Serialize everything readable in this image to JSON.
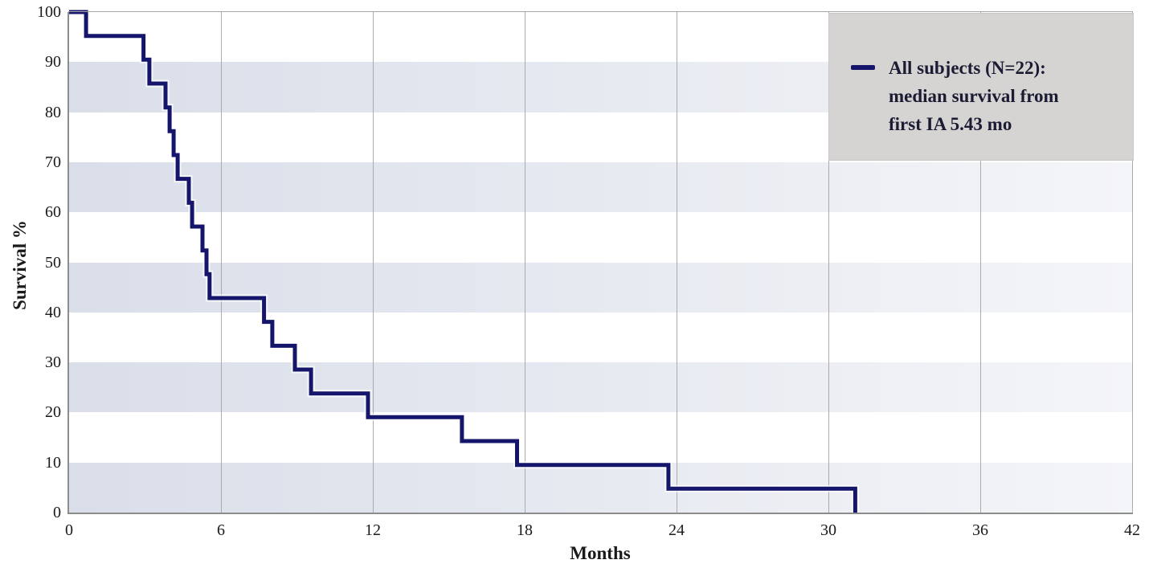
{
  "colors": {
    "background": "#ffffff",
    "curve": "#15156b",
    "curve_halo": "#ffffff",
    "band_left": "#d9dee9",
    "band_right": "#f4f5f8",
    "gridline": "#ababab",
    "axis": "#8c8c8c",
    "axis_top": "#a9a9a9",
    "tick_text": "#1a1a1a",
    "legend_bg": "#d6d4d2",
    "legend_border": "#c9c7c5",
    "legend_text": "#1b1b33"
  },
  "legend": {
    "lines": [
      "All subjects (N=22):",
      "median survival from",
      "first IA 5.43 mo"
    ],
    "position": "top-right"
  },
  "chart_data": {
    "type": "line",
    "subtype": "kaplan-meier-step",
    "title": "",
    "xlabel": "Months",
    "ylabel": "Survival %",
    "xlim": [
      0,
      42
    ],
    "ylim": [
      0,
      100
    ],
    "x_ticks": [
      0,
      6,
      12,
      18,
      24,
      30,
      36,
      42
    ],
    "y_ticks": [
      0,
      10,
      20,
      30,
      40,
      50,
      60,
      70,
      80,
      90,
      100
    ],
    "grid": {
      "vertical_gridlines": true,
      "horizontal_gridlines": false,
      "horizontal_shaded_bands_pct": [
        [
          0,
          10
        ],
        [
          20,
          30
        ],
        [
          40,
          50
        ],
        [
          60,
          70
        ],
        [
          80,
          90
        ]
      ]
    },
    "legend_position": "top-right",
    "series": [
      {
        "name": "All subjects (N=22): median survival from first IA 5.43 mo",
        "color": "#15156b",
        "n_subjects": 22,
        "median_survival_months": 5.43,
        "start": {
          "t": 0,
          "s": 100
        },
        "steps": [
          {
            "t": 0.67,
            "s": 95.24
          },
          {
            "t": 2.94,
            "s": 90.48
          },
          {
            "t": 3.17,
            "s": 85.71
          },
          {
            "t": 3.81,
            "s": 80.95
          },
          {
            "t": 3.97,
            "s": 76.19
          },
          {
            "t": 4.13,
            "s": 71.43
          },
          {
            "t": 4.29,
            "s": 66.67
          },
          {
            "t": 4.73,
            "s": 61.9
          },
          {
            "t": 4.86,
            "s": 57.14
          },
          {
            "t": 5.27,
            "s": 52.38
          },
          {
            "t": 5.43,
            "s": 47.62
          },
          {
            "t": 5.55,
            "s": 42.86
          },
          {
            "t": 7.7,
            "s": 38.1
          },
          {
            "t": 8.03,
            "s": 33.33
          },
          {
            "t": 8.92,
            "s": 28.57
          },
          {
            "t": 9.56,
            "s": 23.81
          },
          {
            "t": 11.81,
            "s": 19.05
          },
          {
            "t": 15.52,
            "s": 14.29
          },
          {
            "t": 17.7,
            "s": 9.52
          },
          {
            "t": 23.68,
            "s": 4.76
          },
          {
            "t": 31.06,
            "s": 0
          }
        ]
      }
    ]
  }
}
